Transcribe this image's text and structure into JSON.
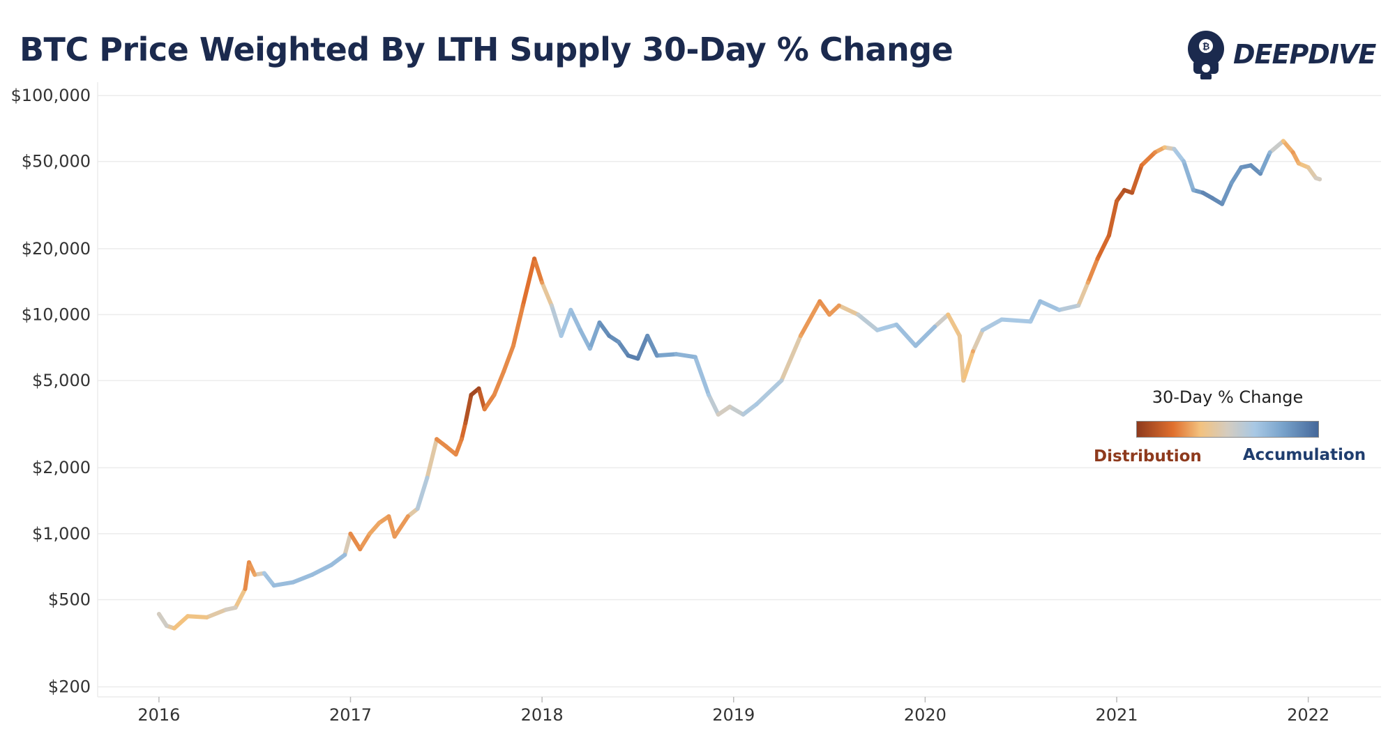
{
  "title": "BTC Price Weighted By LTH Supply 30-Day % Change",
  "brand": {
    "name": "DEEPDIVE",
    "icon": "diving-helmet-bitcoin-icon"
  },
  "legend": {
    "title": "30-Day % Change",
    "low_label": "Distribution",
    "high_label": "Accumulation"
  },
  "colors": {
    "text": "#1b2a4e",
    "distribution_dark": "#8e3a1d",
    "distribution_mid": "#e0702e",
    "distribution_light": "#f3c27f",
    "neutral": "#d4ccc0",
    "accumulation_light": "#a8c8e4",
    "accumulation_mid": "#7aa4cc",
    "accumulation_dark": "#45689a"
  },
  "chart_data": {
    "type": "line",
    "title": "BTC Price Weighted By LTH Supply 30-Day % Change",
    "xlabel": "",
    "ylabel": "",
    "scale_y": "log",
    "ylim": [
      180,
      115000
    ],
    "xlim": [
      2015.68,
      2022.38
    ],
    "grid": true,
    "x_ticks": [
      2016,
      2017,
      2018,
      2019,
      2020,
      2021,
      2022
    ],
    "x_tick_labels": [
      "2016",
      "2017",
      "2018",
      "2019",
      "2020",
      "2021",
      "2022"
    ],
    "y_ticks": [
      200,
      500,
      1000,
      2000,
      5000,
      10000,
      20000,
      50000,
      100000
    ],
    "y_tick_labels": [
      "$200",
      "$500",
      "$1,000",
      "$2,000",
      "$5,000",
      "$10,000",
      "$20,000",
      "$50,000",
      "$100,000"
    ],
    "color_note": "color encodes LTH supply 30-day % change: -1 = Distribution, +1 = Accumulation",
    "series": [
      {
        "points": [
          [
            2016.0,
            430,
            0.0
          ],
          [
            2016.04,
            380,
            0.05
          ],
          [
            2016.08,
            370,
            -0.3
          ],
          [
            2016.15,
            420,
            -0.3
          ],
          [
            2016.25,
            415,
            -0.25
          ],
          [
            2016.35,
            450,
            0.0
          ],
          [
            2016.4,
            460,
            0.0
          ],
          [
            2016.45,
            560,
            -0.5
          ],
          [
            2016.47,
            740,
            -0.5
          ],
          [
            2016.5,
            650,
            -0.4
          ],
          [
            2016.55,
            660,
            0.3
          ],
          [
            2016.6,
            580,
            0.4
          ],
          [
            2016.7,
            600,
            0.4
          ],
          [
            2016.8,
            650,
            0.4
          ],
          [
            2016.9,
            720,
            0.4
          ],
          [
            2016.97,
            800,
            0.4
          ],
          [
            2017.0,
            1000,
            -0.5
          ],
          [
            2017.05,
            850,
            -0.5
          ],
          [
            2017.1,
            1000,
            -0.4
          ],
          [
            2017.15,
            1120,
            -0.4
          ],
          [
            2017.2,
            1200,
            -0.45
          ],
          [
            2017.23,
            970,
            -0.45
          ],
          [
            2017.3,
            1200,
            -0.45
          ],
          [
            2017.35,
            1300,
            0.2
          ],
          [
            2017.4,
            1800,
            0.25
          ],
          [
            2017.45,
            2700,
            -0.5
          ],
          [
            2017.5,
            2500,
            -0.5
          ],
          [
            2017.55,
            2300,
            -0.5
          ],
          [
            2017.58,
            2700,
            -0.55
          ],
          [
            2017.6,
            3200,
            -0.75
          ],
          [
            2017.63,
            4300,
            -0.9
          ],
          [
            2017.67,
            4600,
            -0.9
          ],
          [
            2017.7,
            3700,
            -0.55
          ],
          [
            2017.75,
            4300,
            -0.5
          ],
          [
            2017.8,
            5500,
            -0.5
          ],
          [
            2017.85,
            7200,
            -0.5
          ],
          [
            2017.9,
            11000,
            -0.55
          ],
          [
            2017.96,
            18000,
            -0.65
          ],
          [
            2018.0,
            14000,
            -0.45
          ],
          [
            2018.05,
            11000,
            0.1
          ],
          [
            2018.1,
            8000,
            0.3
          ],
          [
            2018.15,
            10500,
            0.35
          ],
          [
            2018.2,
            8500,
            0.45
          ],
          [
            2018.25,
            7000,
            0.45
          ],
          [
            2018.3,
            9200,
            0.7
          ],
          [
            2018.35,
            8000,
            0.8
          ],
          [
            2018.4,
            7500,
            0.7
          ],
          [
            2018.45,
            6500,
            0.85
          ],
          [
            2018.5,
            6300,
            0.85
          ],
          [
            2018.55,
            8000,
            0.75
          ],
          [
            2018.6,
            6500,
            0.7
          ],
          [
            2018.7,
            6600,
            0.5
          ],
          [
            2018.8,
            6400,
            0.45
          ],
          [
            2018.87,
            4300,
            0.3
          ],
          [
            2018.92,
            3500,
            0.0
          ],
          [
            2018.98,
            3800,
            0.0
          ],
          [
            2019.05,
            3500,
            0.2
          ],
          [
            2019.12,
            3900,
            0.3
          ],
          [
            2019.25,
            5000,
            0.2
          ],
          [
            2019.35,
            8000,
            -0.4
          ],
          [
            2019.45,
            11500,
            -0.5
          ],
          [
            2019.5,
            10000,
            -0.45
          ],
          [
            2019.55,
            11000,
            -0.45
          ],
          [
            2019.65,
            10000,
            0.1
          ],
          [
            2019.75,
            8500,
            0.25
          ],
          [
            2019.85,
            9000,
            0.35
          ],
          [
            2019.95,
            7200,
            0.4
          ],
          [
            2020.05,
            8800,
            0.4
          ],
          [
            2020.12,
            10000,
            -0.3
          ],
          [
            2020.18,
            8000,
            -0.2
          ],
          [
            2020.2,
            5000,
            -0.2
          ],
          [
            2020.25,
            6800,
            -0.4
          ],
          [
            2020.3,
            8500,
            0.25
          ],
          [
            2020.4,
            9500,
            0.3
          ],
          [
            2020.55,
            9300,
            0.3
          ],
          [
            2020.6,
            11500,
            0.4
          ],
          [
            2020.7,
            10500,
            0.3
          ],
          [
            2020.8,
            11000,
            0.1
          ],
          [
            2020.85,
            14000,
            -0.4
          ],
          [
            2020.9,
            18000,
            -0.6
          ],
          [
            2020.96,
            23000,
            -0.7
          ],
          [
            2021.0,
            33000,
            -0.7
          ],
          [
            2021.04,
            37000,
            -0.85
          ],
          [
            2021.08,
            36000,
            -0.8
          ],
          [
            2021.13,
            48000,
            -0.6
          ],
          [
            2021.2,
            55000,
            -0.5
          ],
          [
            2021.25,
            58000,
            -0.3
          ],
          [
            2021.3,
            57000,
            0.2
          ],
          [
            2021.35,
            50000,
            0.4
          ],
          [
            2021.4,
            37000,
            0.55
          ],
          [
            2021.45,
            36000,
            0.8
          ],
          [
            2021.5,
            34000,
            0.8
          ],
          [
            2021.55,
            32000,
            0.75
          ],
          [
            2021.6,
            40000,
            0.65
          ],
          [
            2021.65,
            47000,
            0.7
          ],
          [
            2021.7,
            48000,
            0.75
          ],
          [
            2021.75,
            44000,
            0.75
          ],
          [
            2021.8,
            55000,
            0.45
          ],
          [
            2021.87,
            62000,
            -0.3
          ],
          [
            2021.92,
            55000,
            -0.45
          ],
          [
            2021.95,
            49000,
            -0.35
          ],
          [
            2022.0,
            47000,
            -0.2
          ],
          [
            2022.04,
            42000,
            0.0
          ],
          [
            2022.06,
            41500,
            0.0
          ]
        ]
      }
    ]
  }
}
